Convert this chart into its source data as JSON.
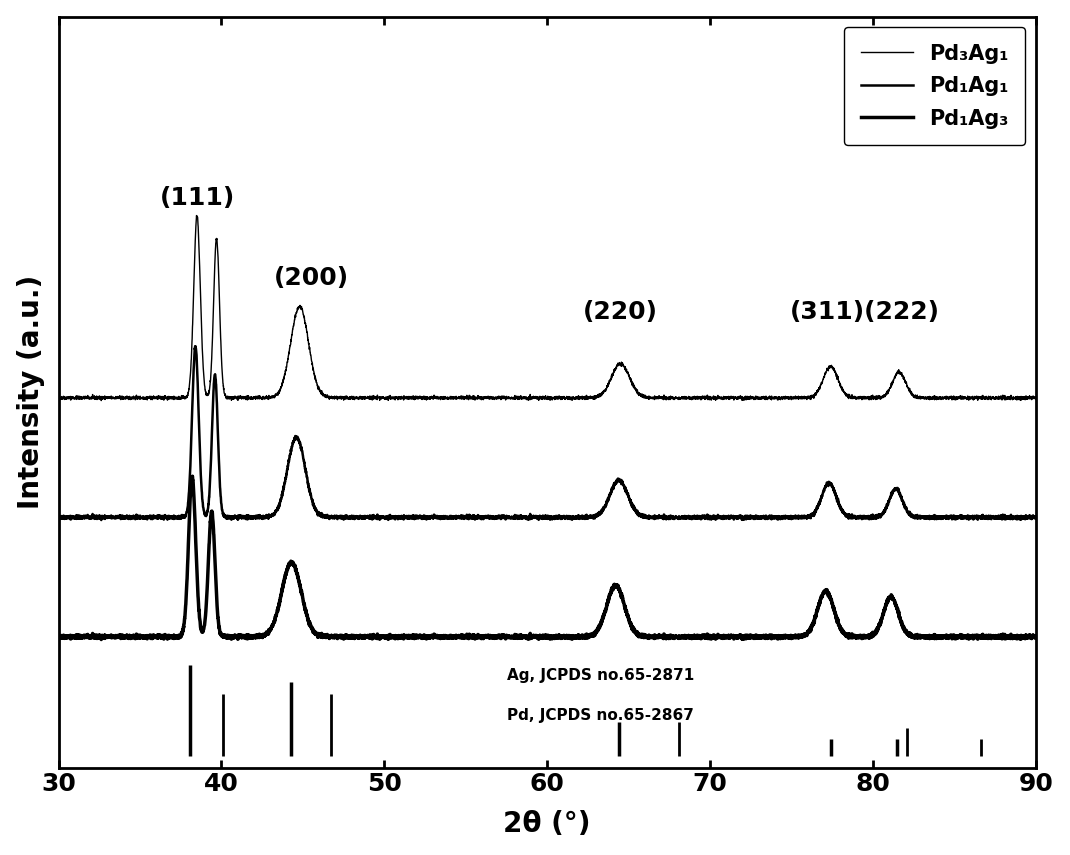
{
  "title": "",
  "xlabel": "2θ (°)",
  "ylabel": "Intensity (a.u.)",
  "xlim": [
    30,
    90
  ],
  "xticks": [
    30,
    40,
    50,
    60,
    70,
    80,
    90
  ],
  "background_color": "#ffffff",
  "legend_labels": [
    "Pd₃Ag₁",
    "Pd₁Ag₁",
    "Pd₁Ag₃"
  ],
  "reference_text_1": "Ag, JCPDS no.65-2871",
  "reference_text_2": "Pd, JCPDS no.65-2867",
  "ag_peaks": [
    38.1,
    44.3,
    64.4,
    77.4,
    81.5
  ],
  "pd_peaks": [
    40.1,
    46.7,
    68.1,
    82.1,
    86.6
  ],
  "line_color": "#000000",
  "font_size_labels": 20,
  "font_size_ticks": 18,
  "font_size_legend": 15,
  "font_size_peak_labels": 18,
  "offsets": [
    0.42,
    0.21,
    0.0
  ],
  "ylim": [
    -0.22,
    1.1
  ]
}
